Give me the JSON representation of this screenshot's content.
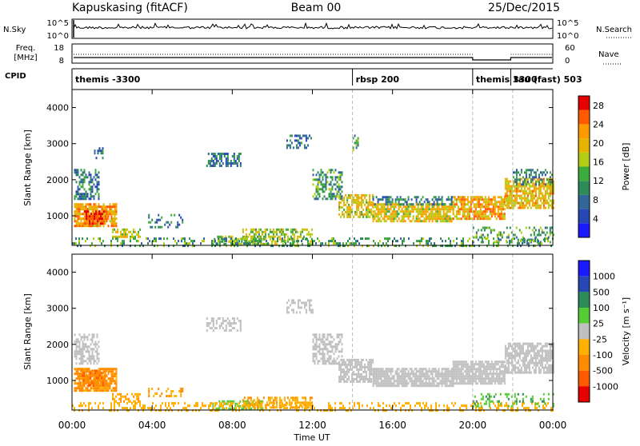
{
  "header": {
    "station": "Kapuskasing (fitACF)",
    "beam": "Beam 00",
    "date": "25/Dec/2015"
  },
  "summary_panel": {
    "nsky_label": "N.Sky",
    "nsky_ticks": [
      "10^5",
      "10^0"
    ],
    "nsearch_label": "N.Search",
    "nsearch_ticks_right": [
      "10^5",
      "10^0"
    ],
    "freq_label": [
      "Freq.",
      "[MHz]"
    ],
    "freq_ticks": [
      "18",
      "8"
    ],
    "nave_label": "Nave",
    "nave_ticks_right": [
      "60",
      "0"
    ],
    "cpid_label": "CPID"
  },
  "cpid_segments": [
    {
      "start_hour": 0.0,
      "label": "themis -3300"
    },
    {
      "start_hour": 14.0,
      "label": "rbsp 200"
    },
    {
      "start_hour": 20.0,
      "label": "themis 3300"
    },
    {
      "start_hour": 21.9,
      "label": "tau (fast) 503"
    }
  ],
  "x_axis": {
    "label": "Time UT",
    "ticks": [
      "00:00",
      "04:00",
      "08:00",
      "12:00",
      "16:00",
      "20:00",
      "00:00"
    ],
    "range_hours": [
      0,
      24
    ]
  },
  "chart_data": [
    {
      "type": "heatmap",
      "panel": "power",
      "ylabel": "Slant Range [km]",
      "ylim": [
        180,
        4500
      ],
      "yticks": [
        "1000",
        "2000",
        "3000",
        "4000"
      ],
      "colorbar": {
        "label": "Power [dB]",
        "range": [
          0,
          30
        ],
        "ticks": [
          "4",
          "8",
          "12",
          "16",
          "20",
          "24",
          "28"
        ],
        "colors": [
          "#1a1aff",
          "#2747b5",
          "#336699",
          "#2e8b57",
          "#3caa3c",
          "#b4cc14",
          "#e6b400",
          "#ff9900",
          "#ff5a00",
          "#e60000"
        ]
      },
      "regions": [
        {
          "t": [
            0.1,
            1.3
          ],
          "r": [
            1450,
            2300
          ],
          "v": 9,
          "d": 0.5
        },
        {
          "t": [
            0.1,
            2.2
          ],
          "r": [
            750,
            1350
          ],
          "v": 22,
          "d": 0.8
        },
        {
          "t": [
            0.6,
            1.7
          ],
          "r": [
            800,
            1150
          ],
          "v": 27,
          "d": 0.8
        },
        {
          "t": [
            1.1,
            1.5
          ],
          "r": [
            2600,
            2900
          ],
          "v": 8,
          "d": 0.4
        },
        {
          "t": [
            2.0,
            3.4
          ],
          "r": [
            450,
            650
          ],
          "v": 18,
          "d": 0.6
        },
        {
          "t": [
            3.8,
            5.5
          ],
          "r": [
            700,
            1050
          ],
          "v": 9,
          "d": 0.25
        },
        {
          "t": [
            6.7,
            8.4
          ],
          "r": [
            2400,
            2750
          ],
          "v": 8,
          "d": 0.55
        },
        {
          "t": [
            7.0,
            9.5
          ],
          "r": [
            250,
            450
          ],
          "v": 14,
          "d": 0.45
        },
        {
          "t": [
            8.5,
            12.0
          ],
          "r": [
            250,
            650
          ],
          "v": 16,
          "d": 0.5
        },
        {
          "t": [
            10.7,
            12.0
          ],
          "r": [
            2900,
            3250
          ],
          "v": 8,
          "d": 0.45
        },
        {
          "t": [
            12.0,
            13.5
          ],
          "r": [
            1500,
            2300
          ],
          "v": 11,
          "d": 0.5
        },
        {
          "t": [
            13.3,
            15.0
          ],
          "r": [
            1000,
            1600
          ],
          "v": 19,
          "d": 0.65
        },
        {
          "t": [
            14.0,
            14.3
          ],
          "r": [
            2800,
            3250
          ],
          "v": 11,
          "d": 0.5
        },
        {
          "t": [
            15.0,
            19.0
          ],
          "r": [
            850,
            1350
          ],
          "v": 19,
          "d": 0.75
        },
        {
          "t": [
            15.0,
            19.0
          ],
          "r": [
            1300,
            1550
          ],
          "v": 9,
          "d": 0.5
        },
        {
          "t": [
            19.0,
            21.6
          ],
          "r": [
            900,
            1550
          ],
          "v": 21,
          "d": 0.75
        },
        {
          "t": [
            21.6,
            24.0
          ],
          "r": [
            1200,
            2050
          ],
          "v": 20,
          "d": 0.7
        },
        {
          "t": [
            22.0,
            24.0
          ],
          "r": [
            1900,
            2300
          ],
          "v": 9,
          "d": 0.45
        },
        {
          "t": [
            20.0,
            24.0
          ],
          "r": [
            300,
            700
          ],
          "v": 12,
          "d": 0.3
        },
        {
          "t": [
            0.0,
            24.0
          ],
          "r": [
            180,
            400
          ],
          "v": 12,
          "d": 0.3
        }
      ]
    },
    {
      "type": "heatmap",
      "panel": "velocity",
      "ylabel": "Slant Range [km]",
      "ylim": [
        180,
        4500
      ],
      "yticks": [
        "1000",
        "2000",
        "3000",
        "4000"
      ],
      "colorbar": {
        "label": "Velocity [m s⁻¹]",
        "range": [
          -1300,
          1300
        ],
        "ticks": [
          "1000",
          "500",
          "100",
          "25",
          "-25",
          "-100",
          "-500",
          "-1000"
        ],
        "colors": [
          "#1a1aff",
          "#2747b5",
          "#2e8b57",
          "#55cc33",
          "#c0c0c0",
          "#ffb000",
          "#ff8c00",
          "#ff5a00",
          "#e60000"
        ]
      },
      "regions": [
        {
          "t": [
            0.1,
            1.3
          ],
          "r": [
            1450,
            2300
          ],
          "v": 0,
          "d": 0.55
        },
        {
          "t": [
            0.1,
            2.2
          ],
          "r": [
            750,
            1350
          ],
          "v": -150,
          "d": 0.8
        },
        {
          "t": [
            0.4,
            1.7
          ],
          "r": [
            850,
            1300
          ],
          "v": -400,
          "d": 0.6
        },
        {
          "t": [
            2.0,
            3.4
          ],
          "r": [
            450,
            650
          ],
          "v": -80,
          "d": 0.6
        },
        {
          "t": [
            3.8,
            5.5
          ],
          "r": [
            550,
            800
          ],
          "v": -90,
          "d": 0.35
        },
        {
          "t": [
            6.7,
            8.4
          ],
          "r": [
            2400,
            2750
          ],
          "v": 0,
          "d": 0.5
        },
        {
          "t": [
            7.0,
            9.5
          ],
          "r": [
            250,
            450
          ],
          "v": 60,
          "d": 0.45
        },
        {
          "t": [
            8.5,
            12.0
          ],
          "r": [
            250,
            550
          ],
          "v": -90,
          "d": 0.5
        },
        {
          "t": [
            10.7,
            12.0
          ],
          "r": [
            2900,
            3250
          ],
          "v": 0,
          "d": 0.45
        },
        {
          "t": [
            12.0,
            13.5
          ],
          "r": [
            1500,
            2300
          ],
          "v": 0,
          "d": 0.6
        },
        {
          "t": [
            13.3,
            15.0
          ],
          "r": [
            1000,
            1600
          ],
          "v": 0,
          "d": 0.7
        },
        {
          "t": [
            15.0,
            19.0
          ],
          "r": [
            850,
            1350
          ],
          "v": 0,
          "d": 0.85
        },
        {
          "t": [
            19.0,
            21.6
          ],
          "r": [
            900,
            1550
          ],
          "v": 0,
          "d": 0.85
        },
        {
          "t": [
            21.6,
            24.0
          ],
          "r": [
            1200,
            2050
          ],
          "v": 0,
          "d": 0.75
        },
        {
          "t": [
            0.0,
            24.0
          ],
          "r": [
            180,
            400
          ],
          "v": -60,
          "d": 0.3
        },
        {
          "t": [
            20.0,
            24.0
          ],
          "r": [
            300,
            650
          ],
          "v": 80,
          "d": 0.25
        }
      ]
    }
  ]
}
